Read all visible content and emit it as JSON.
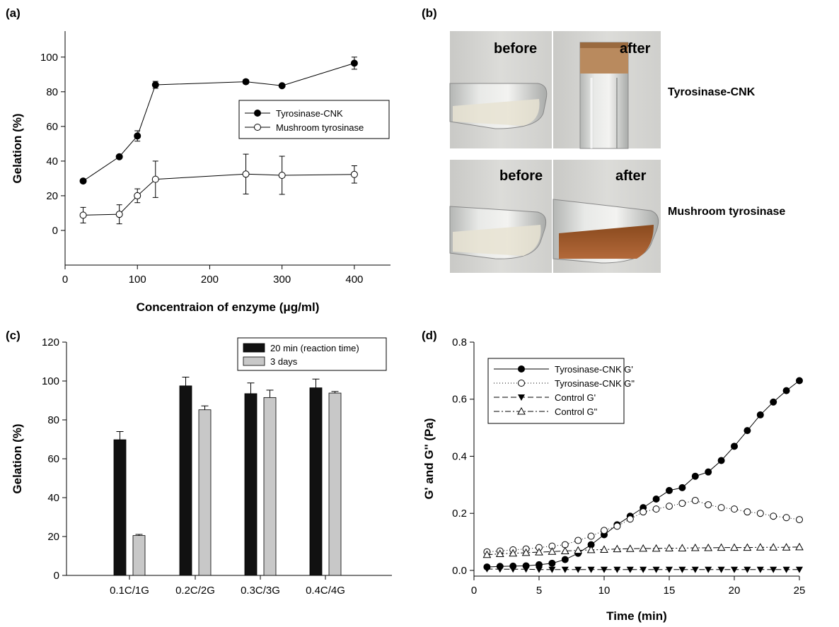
{
  "panels": {
    "a": {
      "label": "(a)"
    },
    "b": {
      "label": "(b)",
      "rows": [
        {
          "before": "before",
          "after": "after",
          "name": "Tyrosinase-CNK"
        },
        {
          "before": "before",
          "after": "after",
          "name": "Mushroom tyrosinase"
        }
      ]
    },
    "c": {
      "label": "(c)"
    },
    "d": {
      "label": "(d)"
    }
  },
  "chart_data": [
    {
      "id": "a",
      "type": "line",
      "xlabel": "Concentraion of enzyme (μg/ml)",
      "ylabel": "Gelation (%)",
      "xlim": [
        0,
        450
      ],
      "ylim": [
        -20,
        115
      ],
      "xticks": [
        0,
        100,
        200,
        300,
        400
      ],
      "yticks": [
        0,
        20,
        40,
        60,
        80,
        100
      ],
      "legend_position": "center-right",
      "series": [
        {
          "name": "Tyrosinase-CNK",
          "marker": "filled-circle",
          "x": [
            25,
            75,
            100,
            125,
            250,
            300,
            400
          ],
          "y": [
            28.5,
            42.5,
            54.5,
            84,
            85.8,
            83.5,
            96.5
          ],
          "err": [
            0.8,
            1,
            3,
            2,
            1.2,
            0.8,
            3.5
          ]
        },
        {
          "name": "Mushroom tyrosinase",
          "marker": "open-circle",
          "x": [
            25,
            75,
            100,
            125,
            250,
            300,
            400
          ],
          "y": [
            8.8,
            9.3,
            20,
            29.5,
            32.5,
            31.8,
            32.3
          ],
          "err": [
            4.5,
            5.5,
            4,
            10.5,
            11.5,
            11,
            5
          ]
        }
      ]
    },
    {
      "id": "c",
      "type": "bar",
      "xlabel": "",
      "ylabel": "Gelation (%)",
      "ylim": [
        0,
        120
      ],
      "yticks": [
        0,
        20,
        40,
        60,
        80,
        100,
        120
      ],
      "categories": [
        "0.1C/1G",
        "0.2C/2G",
        "0.3C/3G",
        "0.4C/4G"
      ],
      "legend_position": "top-right",
      "series": [
        {
          "name": "20 min (reaction time)",
          "color": "#111111",
          "values": [
            69.8,
            97.5,
            93.5,
            96.5
          ],
          "err": [
            4.2,
            4.5,
            5.5,
            4.5
          ]
        },
        {
          "name": "3 days",
          "color": "#c8c8c8",
          "values": [
            20.5,
            85.2,
            91.5,
            93.8
          ],
          "err": [
            0.6,
            2,
            3.8,
            0.8
          ]
        }
      ]
    },
    {
      "id": "d",
      "type": "line",
      "xlabel": "Time (min)",
      "ylabel": "G' and G'' (Pa)",
      "xlim": [
        0,
        25
      ],
      "ylim": [
        -0.02,
        0.8
      ],
      "xticks": [
        0,
        5,
        10,
        15,
        20,
        25
      ],
      "yticks": [
        0.0,
        0.2,
        0.4,
        0.6,
        0.8
      ],
      "ytick_labels": [
        "0.0",
        "0.2",
        "0.4",
        "0.6",
        "0.8"
      ],
      "legend_position": "top-left",
      "x": [
        1,
        2,
        3,
        4,
        5,
        6,
        7,
        8,
        9,
        10,
        11,
        12,
        13,
        14,
        15,
        16,
        17,
        18,
        19,
        20,
        21,
        22,
        23,
        24,
        25
      ],
      "series": [
        {
          "name": "Tyrosinase-CNK G'",
          "marker": "filled-circle",
          "dash": "",
          "y": [
            0.012,
            0.014,
            0.015,
            0.016,
            0.02,
            0.025,
            0.038,
            0.06,
            0.09,
            0.125,
            0.16,
            0.19,
            0.22,
            0.25,
            0.28,
            0.29,
            0.33,
            0.345,
            0.385,
            0.435,
            0.49,
            0.545,
            0.59,
            0.63,
            0.665
          ]
        },
        {
          "name": "Tyrosinase-CNK G\"",
          "marker": "open-circle",
          "dash": "1,3",
          "y": [
            0.065,
            0.068,
            0.072,
            0.075,
            0.08,
            0.085,
            0.09,
            0.105,
            0.12,
            0.14,
            0.155,
            0.18,
            0.205,
            0.215,
            0.225,
            0.235,
            0.245,
            0.23,
            0.22,
            0.215,
            0.205,
            0.2,
            0.19,
            0.185,
            0.178
          ]
        },
        {
          "name": "Control G'",
          "marker": "filled-triangle-down",
          "dash": "8,4",
          "y": [
            0.005,
            0.004,
            0.004,
            0.004,
            0.003,
            0.003,
            0.003,
            0.003,
            0.003,
            0.003,
            0.003,
            0.003,
            0.003,
            0.003,
            0.003,
            0.003,
            0.003,
            0.003,
            0.003,
            0.003,
            0.003,
            0.003,
            0.003,
            0.003,
            0.003
          ]
        },
        {
          "name": "Control G\"",
          "marker": "open-triangle-up",
          "dash": "8,3,2,3",
          "y": [
            0.055,
            0.058,
            0.06,
            0.062,
            0.064,
            0.066,
            0.068,
            0.07,
            0.072,
            0.073,
            0.075,
            0.076,
            0.077,
            0.077,
            0.078,
            0.078,
            0.079,
            0.079,
            0.08,
            0.08,
            0.08,
            0.081,
            0.081,
            0.081,
            0.082
          ]
        }
      ]
    }
  ]
}
